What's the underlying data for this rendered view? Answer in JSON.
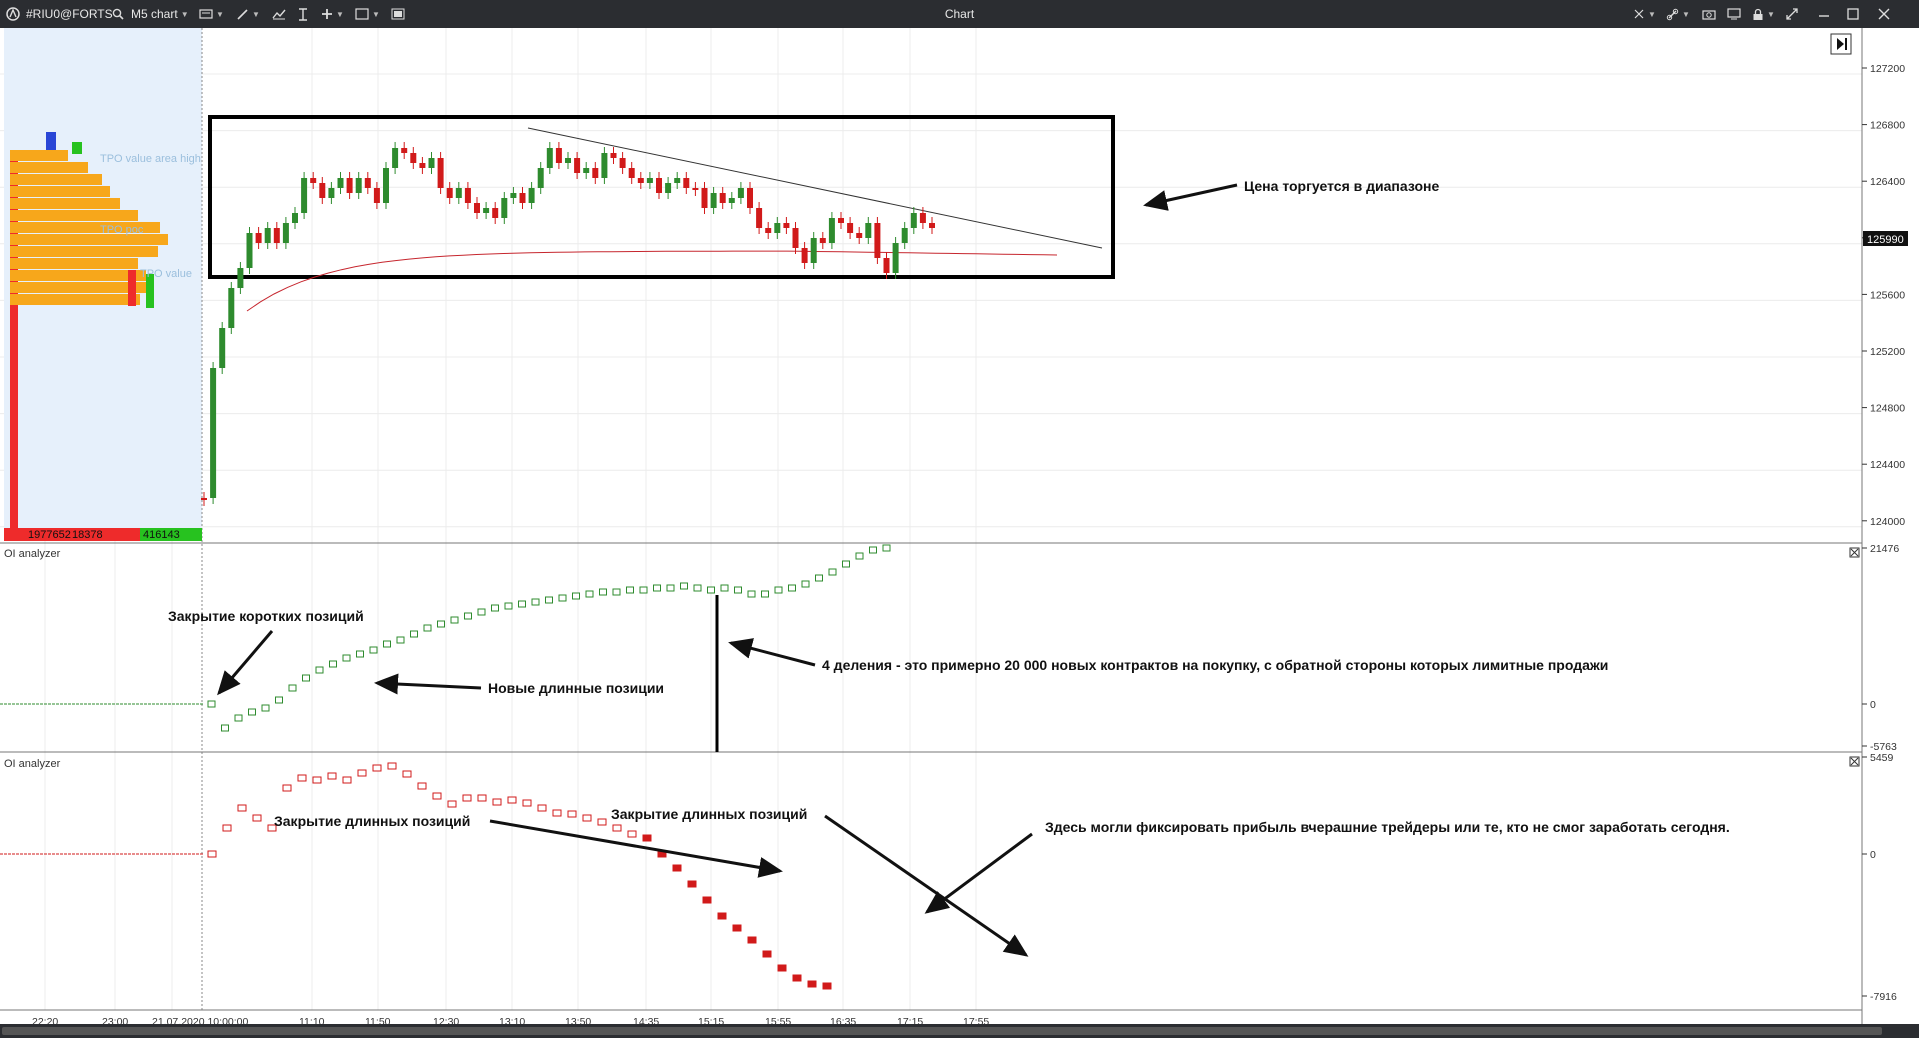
{
  "toolbar": {
    "symbol": "#RIU0@FORTS",
    "timeframe": "M5 chart",
    "window_title": "Chart",
    "icons": [
      "app-logo",
      "search",
      "chart-type",
      "drawing-tools",
      "indicators",
      "anchor",
      "add",
      "window-layout",
      "template",
      "pin",
      "link",
      "camera",
      "screen",
      "lock",
      "expand",
      "minimize",
      "maximize",
      "close"
    ]
  },
  "price_axis": {
    "ticks": [
      "127200",
      "126800",
      "126400",
      "126000",
      "125600",
      "125200",
      "124800",
      "124400",
      "124000"
    ],
    "current_price": "125990"
  },
  "time_axis": {
    "ticks": [
      "22:20",
      "23:00",
      "21.07.2020 10:00:00",
      "11:10",
      "11:50",
      "12:30",
      "13:10",
      "13:50",
      "14:35",
      "15:15",
      "15:55",
      "16:35",
      "17:15",
      "17:55"
    ]
  },
  "profile": {
    "labels": [
      "TPO value area high",
      "TPO poc",
      "TPO value"
    ],
    "volumes": [
      "1977652",
      "18378",
      "416143"
    ]
  },
  "panes": {
    "oi_green": {
      "title": "OI analyzer",
      "axis": [
        "21476",
        "0",
        "-5763"
      ]
    },
    "oi_red": {
      "title": "OI analyzer",
      "axis": [
        "5459",
        "0",
        "-7916"
      ]
    }
  },
  "annotations": {
    "range": "Цена торгуется в диапазоне",
    "short_close": "Закрытие коротких позиций",
    "new_long": "Новые длинные позиции",
    "divisions": "4 деления - это примерно 20 000 новых контрактов на покупку, с обратной стороны которых лимитные продажи",
    "long_close_1": "Закрытие длинных позиций",
    "long_close_2": "Закрытие длинных позиций",
    "profit": "Здесь могли фиксировать прибыль вчерашние трейдеры или те, кто не смог заработать сегодня."
  },
  "colors": {
    "bull": "#2e8b2e",
    "bear": "#d11a1a",
    "profile_orange": "#f7a71b",
    "profile_red": "#ee2b2b",
    "profile_green": "#27c21f",
    "shade": "#e6f0fb"
  }
}
